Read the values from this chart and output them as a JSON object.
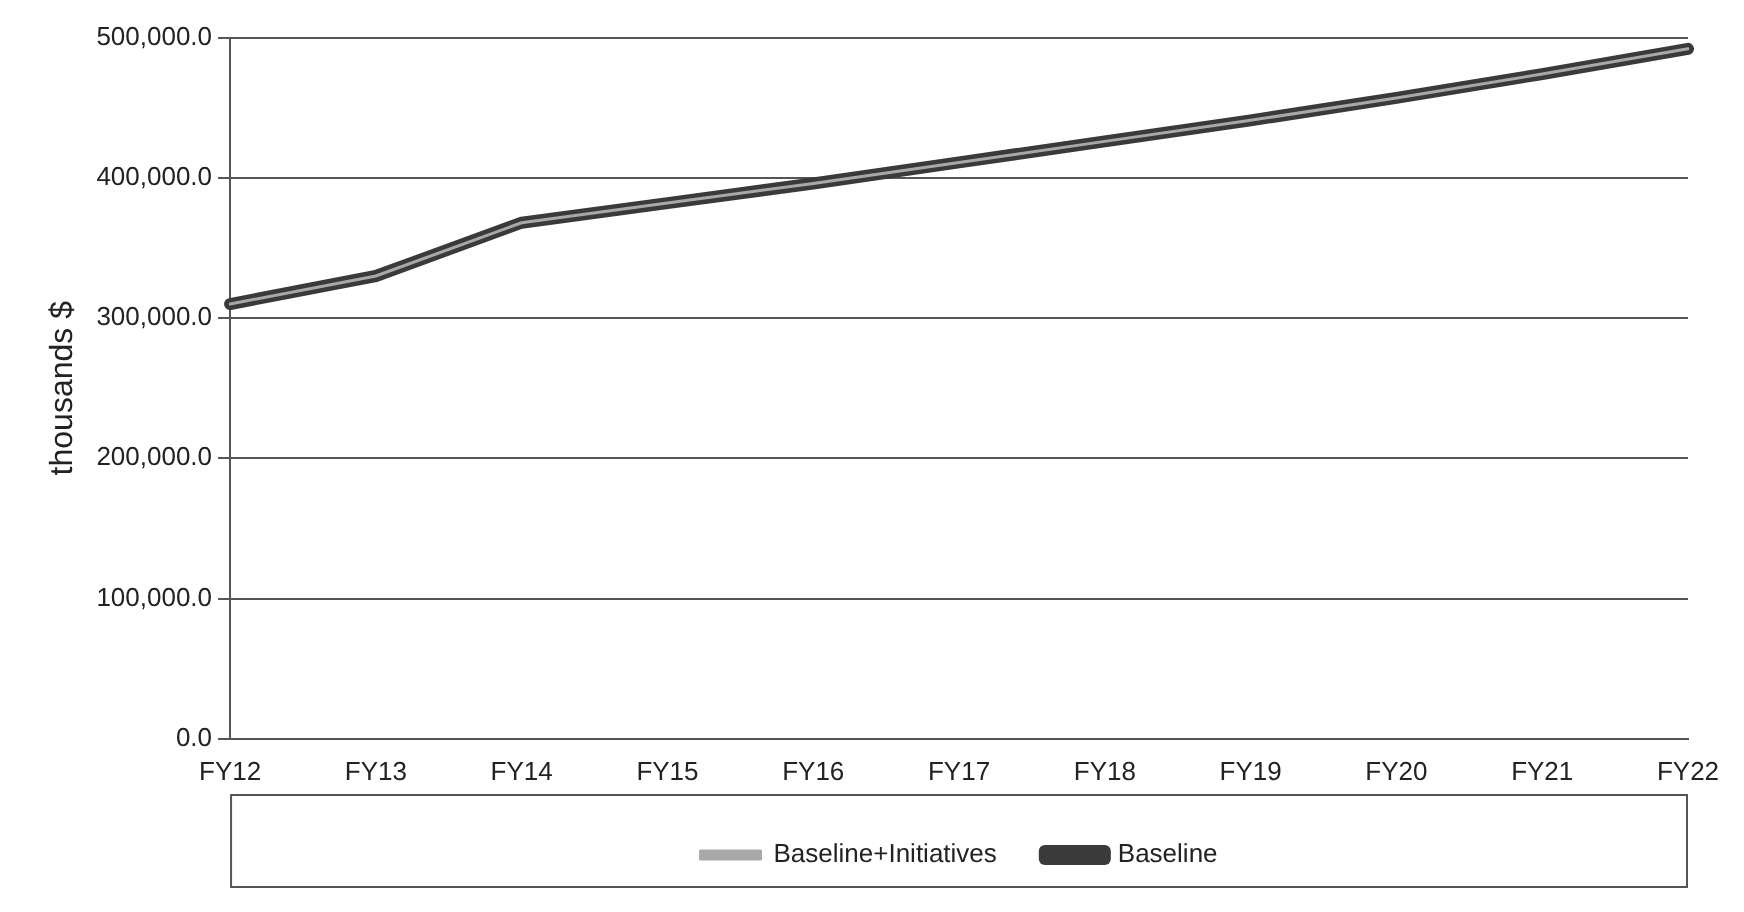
{
  "chart_data": {
    "type": "line",
    "ylabel": "thousands $",
    "categories": [
      "FY12",
      "FY13",
      "FY14",
      "FY15",
      "FY16",
      "FY17",
      "FY18",
      "FY19",
      "FY20",
      "FY21",
      "FY22"
    ],
    "series": [
      {
        "name": "Baseline",
        "color": "#3a3a3a",
        "values": [
          310000,
          330000,
          368000,
          382000,
          396000,
          411000,
          426000,
          441000,
          457000,
          474000,
          492000
        ]
      },
      {
        "name": "Baseline+Initiatives",
        "color": "#a8a8a8",
        "values": [
          310000,
          330000,
          368000,
          382000,
          396000,
          411000,
          426000,
          441000,
          457000,
          474000,
          492000
        ]
      }
    ],
    "ylim": [
      0,
      500000
    ],
    "yticks": [
      {
        "value": 0,
        "label": "0.0"
      },
      {
        "value": 100000,
        "label": "100,000.0"
      },
      {
        "value": 200000,
        "label": "200,000.0"
      },
      {
        "value": 300000,
        "label": "300,000.0"
      },
      {
        "value": 400000,
        "label": "400,000.0"
      },
      {
        "value": 500000,
        "label": "500,000.0"
      }
    ],
    "grid": "y",
    "legend": "bottom",
    "marker": "none",
    "line_style": "solid"
  }
}
